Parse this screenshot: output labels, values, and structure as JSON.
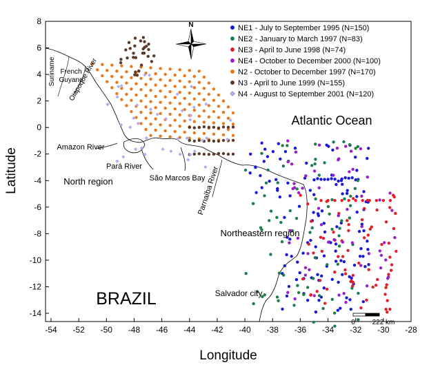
{
  "map": {
    "x_axis_label": "Longitude",
    "y_axis_label": "Latitude",
    "x_ticks": [
      "-54",
      "-52",
      "-50",
      "-48",
      "-46",
      "-44",
      "-42",
      "-40",
      "-38",
      "-36",
      "-34",
      "-32",
      "-30",
      "-28"
    ],
    "y_ticks": [
      "8",
      "6",
      "4",
      "2",
      "0",
      "-2",
      "-4",
      "-6",
      "-8",
      "-10",
      "-12",
      "-14"
    ],
    "compass_label": "N",
    "scale_bar": {
      "start_label": "0",
      "end_label": "222 km"
    },
    "place_labels": {
      "suriname": "Suriname",
      "french_guyane": "French Guyane",
      "oiapoque_river": "Oiapoque River",
      "amazon_river": "Amazon River",
      "para_river": "Pará River",
      "sao_marcos_bay": "São Marcos Bay",
      "parnaiba_river": "Parnaíba River",
      "north_region": "North region",
      "northeastern_region": "Northeastern region",
      "salvador_city": "Salvador city",
      "atlantic_ocean": "Atlantic Ocean",
      "brazil": "BRAZIL"
    },
    "legend": [
      {
        "label": "NE1 - July to September 1995 (N=150)",
        "color": "#1a1ad6"
      },
      {
        "label": "NE2 - January to March 1997 (N=83)",
        "color": "#1e7e4a"
      },
      {
        "label": "NE3 - April to June 1998 (N=74)",
        "color": "#e0202a"
      },
      {
        "label": "NE4 - October to December 2000 (N=100)",
        "color": "#9b1fc9"
      },
      {
        "label": "N2 - October to December 1997 (N=170)",
        "color": "#e8781e"
      },
      {
        "label": "N3 - April to June 1999 (N=155)",
        "color": "#5a3a2a"
      },
      {
        "label": "N4 - August to September 2001 (N=120)",
        "color": "#b0aef0"
      }
    ]
  }
}
